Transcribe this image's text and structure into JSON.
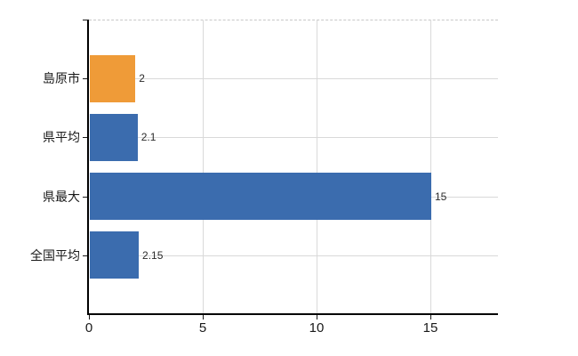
{
  "chart_data": {
    "type": "bar",
    "orientation": "horizontal",
    "title": "",
    "xlabel": "",
    "ylabel": "",
    "categories": [
      "島原市",
      "県平均",
      "県最大",
      "全国平均"
    ],
    "values": [
      2,
      2.1,
      15,
      2.15
    ],
    "value_labels": [
      "2",
      "2.1",
      "15",
      "2.15"
    ],
    "bar_colors": [
      "#EF9B38",
      "#3B6CAE",
      "#3B6CAE",
      "#3B6CAE"
    ],
    "x_ticks": [
      0,
      5,
      10,
      15
    ],
    "x_tick_labels": [
      "0",
      "5",
      "10",
      "15"
    ],
    "xlim": [
      0,
      18
    ],
    "grid": true,
    "legend": false
  },
  "colors": {
    "background": "#ffffff",
    "grid": "#d9d9d9",
    "plot_top_border": "#c8c8c8",
    "axis": "#000000",
    "tick": "#1a1a1a",
    "text": "#1a1a1a",
    "value_text": "#2b2b2b"
  }
}
